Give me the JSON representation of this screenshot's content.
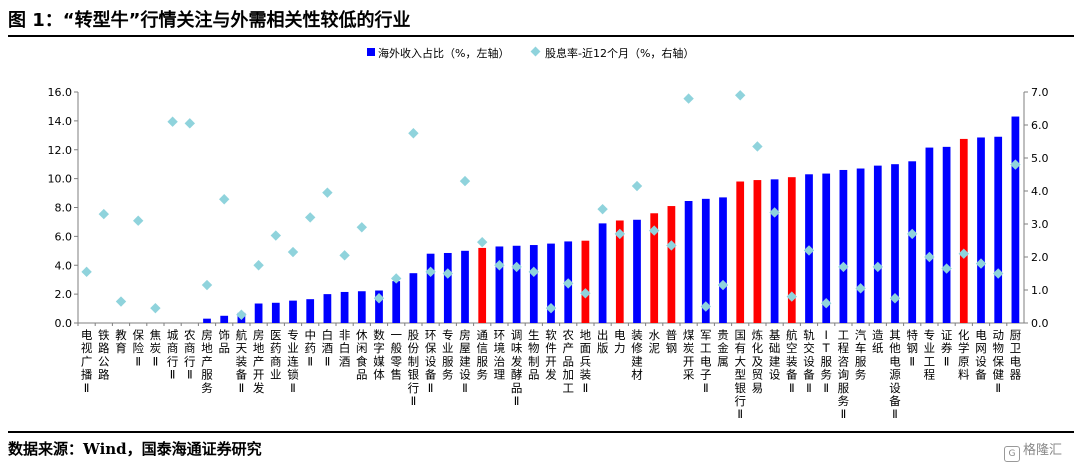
{
  "title": "图 1：“转型牛”行情关注与外需相关性较低的行业",
  "source": "数据来源：Wind，国泰海通证券研究",
  "watermark": "格隆汇",
  "colors": {
    "bar_default": "#0000ff",
    "bar_highlight": "#ff0000",
    "marker": "#8fd3dc",
    "axis": "#7f7f7f"
  },
  "chart_data": {
    "type": "bar",
    "legend_position": "top",
    "series": [
      {
        "name": "海外收入占比（%，左轴）",
        "type": "bar",
        "axis": "left"
      },
      {
        "name": "股息率-近12个月（%，右轴）",
        "type": "scatter",
        "axis": "right"
      }
    ],
    "ylim_left": [
      0,
      16
    ],
    "yticks_left": [
      "0.0",
      "2.0",
      "4.0",
      "6.0",
      "8.0",
      "10.0",
      "12.0",
      "14.0",
      "16.0"
    ],
    "ylim_right": [
      0,
      7
    ],
    "yticks_right": [
      "0.0",
      "1.0",
      "2.0",
      "3.0",
      "4.0",
      "5.0",
      "6.0",
      "7.0"
    ],
    "grid": false,
    "categories": [
      "电视广播Ⅱ",
      "铁路公路",
      "教育",
      "保险Ⅱ",
      "焦炭Ⅱ",
      "城商行Ⅱ",
      "农商行Ⅱ",
      "房地产服务",
      "饰品",
      "航天装备Ⅱ",
      "房地产开发",
      "医药商业",
      "专业连锁Ⅱ",
      "中药Ⅱ",
      "白酒Ⅱ",
      "非白酒",
      "休闲食品",
      "数字媒体",
      "一般零售",
      "股份制银行Ⅱ",
      "环保设备Ⅱ",
      "专业服务",
      "房屋建设Ⅱ",
      "通信服务",
      "环境治理",
      "调味发酵品Ⅱ",
      "生物制品",
      "软件开发",
      "农产品加工",
      "地面兵装Ⅱ",
      "出版",
      "电力",
      "装修建材",
      "水泥",
      "普钢",
      "煤炭开采",
      "军工电子Ⅱ",
      "贵金属",
      "国有大型银行Ⅱ",
      "炼化及贸易",
      "基础建设",
      "航空装备Ⅱ",
      "轨交设备Ⅱ",
      "IT服务Ⅱ",
      "工程咨询服务Ⅱ",
      "汽车服务",
      "造纸",
      "其他电源设备Ⅱ",
      "特钢Ⅱ",
      "专业工程",
      "证券Ⅱ",
      "化学原料",
      "电网设备",
      "动物保健Ⅱ",
      "厨卫电器"
    ],
    "bar_values": [
      0,
      0,
      0,
      0,
      0,
      0,
      0,
      0.3,
      0.5,
      0.7,
      1.35,
      1.4,
      1.55,
      1.65,
      2.0,
      2.15,
      2.2,
      2.25,
      2.9,
      3.45,
      4.8,
      4.85,
      5.0,
      5.2,
      5.3,
      5.35,
      5.4,
      5.5,
      5.65,
      5.7,
      6.9,
      7.1,
      7.15,
      7.6,
      8.1,
      8.45,
      8.6,
      8.7,
      9.8,
      9.9,
      9.95,
      10.1,
      10.3,
      10.35,
      10.6,
      10.7,
      10.9,
      11.0,
      11.2,
      12.15,
      12.2,
      12.75,
      12.85,
      12.9,
      14.3
    ],
    "highlight_categories": [
      "通信服务",
      "地面兵装Ⅱ",
      "电力",
      "水泥",
      "普钢",
      "国有大型银行Ⅱ",
      "炼化及贸易",
      "航空装备Ⅱ",
      "化学原料"
    ],
    "dividend_yield": [
      1.55,
      3.3,
      0.65,
      3.1,
      0.45,
      6.1,
      6.05,
      1.15,
      3.75,
      0.25,
      1.75,
      2.65,
      2.15,
      3.2,
      3.95,
      2.05,
      2.9,
      0.75,
      1.35,
      5.75,
      1.55,
      1.5,
      4.3,
      2.45,
      1.75,
      1.7,
      1.55,
      0.45,
      1.2,
      0.9,
      3.45,
      2.7,
      4.15,
      2.8,
      2.35,
      6.8,
      0.5,
      1.15,
      6.9,
      5.35,
      3.35,
      0.8,
      2.2,
      0.6,
      1.7,
      1.05,
      1.7,
      0.75,
      2.7,
      2.0,
      1.65,
      2.1,
      1.8,
      1.5,
      4.8
    ]
  }
}
